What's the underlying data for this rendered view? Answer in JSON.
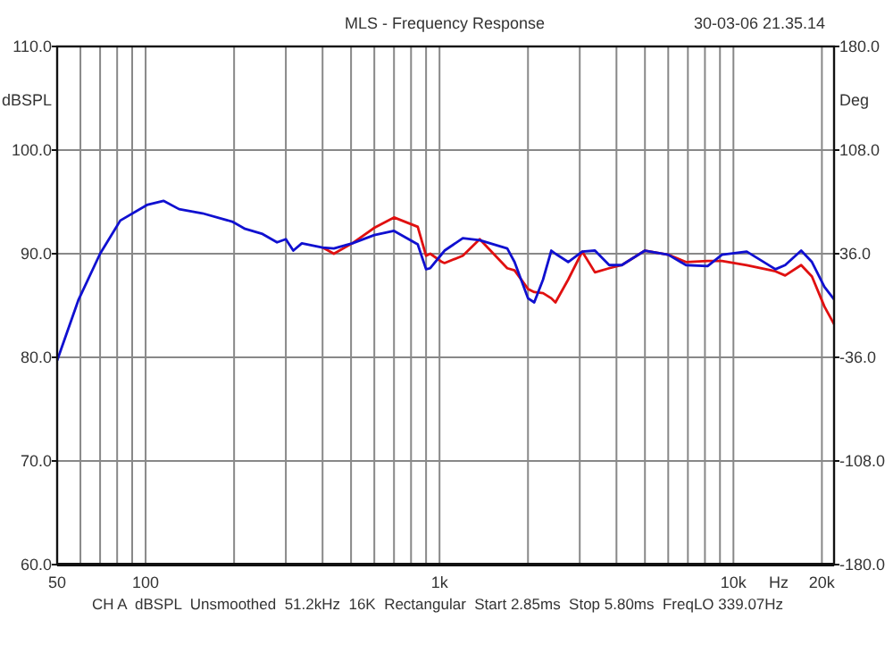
{
  "chart_data": {
    "type": "line",
    "title": "MLS - Frequency Response",
    "ylabel": "dBSPL",
    "y2label": "Deg",
    "xlabel": "Hz",
    "annotations": [
      "30-03-06 21.35.14",
      "CH A  dBSPL  Unsmoothed  51.2kHz  16K  Rectangular  Start 2.85ms  Stop 5.80ms  FreqLO 339.07Hz"
    ],
    "x": [
      50,
      59,
      70,
      82,
      101,
      115,
      130,
      156,
      197,
      218,
      250,
      280,
      300,
      318,
      340,
      400,
      437,
      505,
      600,
      700,
      843,
      900,
      930,
      1020,
      1040,
      1200,
      1370,
      1700,
      1800,
      2000,
      2100,
      2250,
      2400,
      2480,
      2740,
      3060,
      3380,
      3780,
      4170,
      5000,
      6000,
      6900,
      8170,
      9140,
      11100,
      13900,
      15000,
      17000,
      18500,
      20400,
      22000
    ],
    "series": [
      {
        "color": "#e01010",
        "values": [
          null,
          null,
          null,
          null,
          null,
          null,
          null,
          null,
          null,
          null,
          null,
          null,
          null,
          null,
          null,
          90.6,
          90.0,
          91.0,
          92.5,
          93.5,
          92.6,
          89.8,
          90.0,
          89.2,
          89.1,
          89.8,
          91.4,
          88.6,
          88.4,
          86.6,
          86.3,
          86.2,
          85.7,
          85.3,
          87.5,
          90.2,
          88.2,
          88.6,
          88.9,
          90.3,
          89.9,
          89.2,
          89.3,
          89.3,
          88.9,
          88.3,
          87.9,
          88.9,
          87.8,
          84.9,
          83.2
        ]
      },
      {
        "color": "#1010d0",
        "values": [
          79.7,
          85.5,
          90.0,
          93.2,
          94.7,
          95.1,
          94.3,
          93.9,
          93.1,
          92.4,
          91.9,
          91.1,
          91.4,
          90.3,
          91.0,
          90.6,
          90.5,
          91.0,
          91.8,
          92.2,
          90.9,
          88.5,
          88.6,
          90.0,
          90.3,
          91.5,
          91.3,
          90.5,
          89.2,
          85.7,
          85.3,
          87.5,
          90.3,
          90.0,
          89.2,
          90.2,
          90.3,
          88.9,
          88.9,
          90.3,
          89.9,
          88.9,
          88.8,
          89.9,
          90.2,
          88.5,
          88.9,
          90.3,
          89.2,
          86.8,
          85.6
        ]
      }
    ],
    "log": "x",
    "xlim": [
      50,
      22000
    ],
    "xticks": [
      50,
      {
        "value": 60,
        "label": null
      },
      {
        "value": 70,
        "label": null
      },
      {
        "value": 80,
        "label": null
      },
      {
        "value": 90,
        "label": null
      },
      100,
      {
        "value": 200,
        "label": null
      },
      {
        "value": 300,
        "label": null
      },
      {
        "value": 400,
        "label": null
      },
      {
        "value": 500,
        "label": null
      },
      {
        "value": 600,
        "label": null
      },
      {
        "value": 700,
        "label": null
      },
      {
        "value": 800,
        "label": null
      },
      {
        "value": 900,
        "label": null
      },
      {
        "value": 1000,
        "label": "1k"
      },
      {
        "value": 2000,
        "label": null
      },
      {
        "value": 3000,
        "label": null
      },
      {
        "value": 4000,
        "label": null
      },
      {
        "value": 5000,
        "label": null
      },
      {
        "value": 6000,
        "label": null
      },
      {
        "value": 7000,
        "label": null
      },
      {
        "value": 8000,
        "label": null
      },
      {
        "value": 9000,
        "label": null
      },
      {
        "value": 10000,
        "label": "10k"
      },
      {
        "value": 20000,
        "label": "20k"
      }
    ],
    "ylim": [
      60,
      110
    ],
    "yticks": [
      {
        "value": 60,
        "label": "60.0"
      },
      {
        "value": 70,
        "label": "70.0"
      },
      {
        "value": 80,
        "label": "80.0"
      },
      {
        "value": 90,
        "label": "90.0"
      },
      {
        "value": 100,
        "label": "100.0"
      },
      {
        "value": 110,
        "label": "110.0"
      }
    ],
    "y2lim": [
      -180,
      180
    ],
    "y2ticks": [
      {
        "value": -180,
        "label": "-180.0"
      },
      {
        "value": -108,
        "label": "-108.0"
      },
      {
        "value": -36,
        "label": "-36.0"
      },
      {
        "value": 36,
        "label": "36.0"
      },
      {
        "value": 108,
        "label": "108.0"
      },
      {
        "value": 180,
        "label": "180.0"
      }
    ],
    "grid": true,
    "line_style": "solid"
  }
}
